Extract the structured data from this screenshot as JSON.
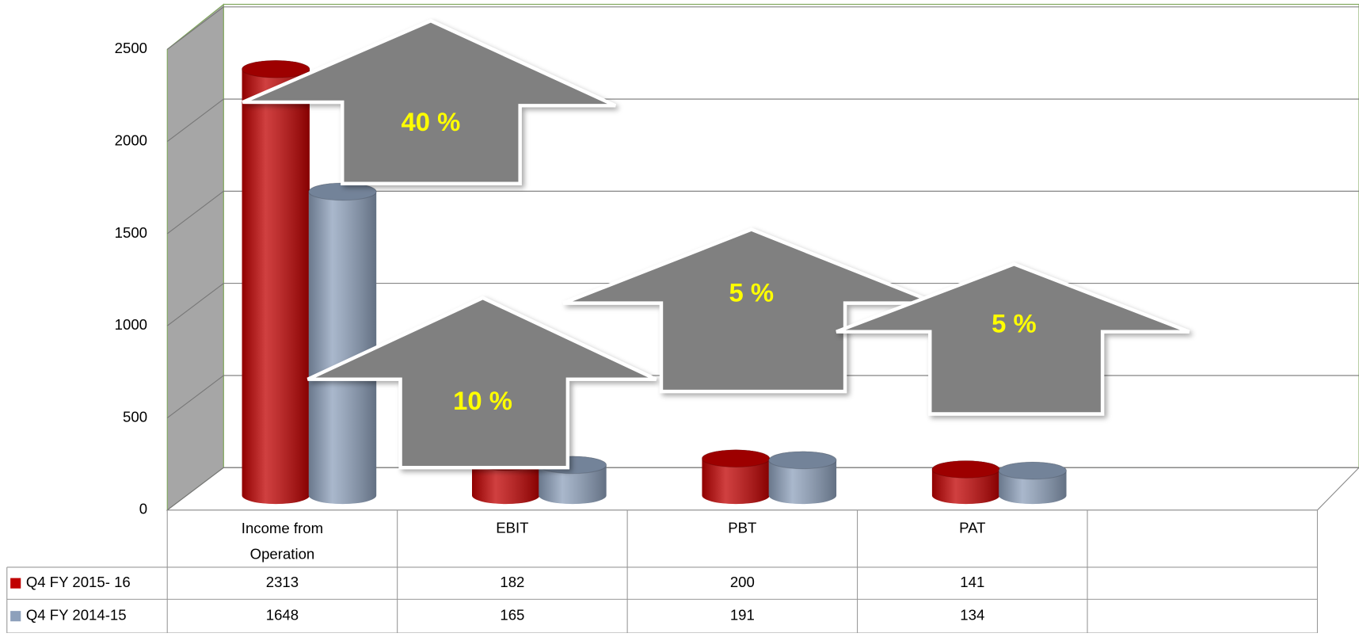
{
  "chart_data": {
    "type": "bar",
    "categories": [
      "Income from Operation",
      "EBIT",
      "PBT",
      "PAT",
      null
    ],
    "series": [
      {
        "name": "Q4 FY 2015- 16",
        "color": "#c00000",
        "values": [
          2313,
          182,
          200,
          141,
          null
        ]
      },
      {
        "name": "Q4 FY 2014-15",
        "color": "#8da0bb",
        "values": [
          1648,
          165,
          191,
          134,
          null
        ]
      }
    ],
    "ylim": [
      0,
      2500
    ],
    "yticks": [
      0,
      500,
      1000,
      1500,
      2000,
      2500
    ],
    "grid": true,
    "annotations": [
      "40 %",
      "10 %",
      "5 %",
      "5 %"
    ]
  }
}
